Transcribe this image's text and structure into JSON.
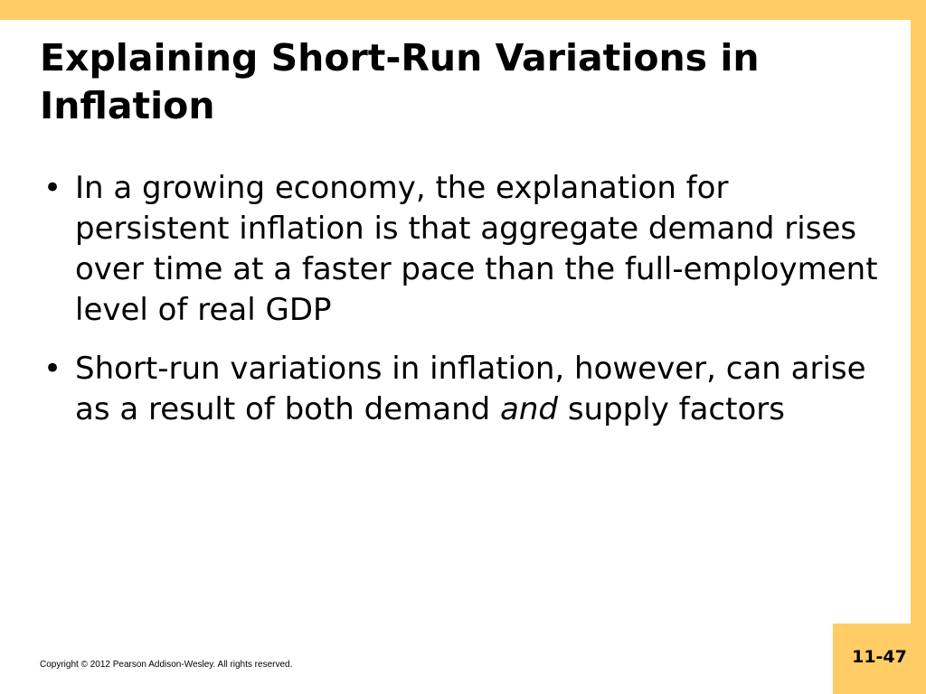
{
  "slide": {
    "title": "Explaining Short-Run Variations in Inflation",
    "bullets": [
      {
        "parts": [
          "In a growing economy, the explanation for persistent inflation is that aggregate demand rises over time at a faster pace than the full-employment level of real GDP"
        ]
      },
      {
        "before": "Short-run variations in inflation, however, can arise as a result of both demand ",
        "emphasis": "and",
        "after": " supply factors"
      }
    ],
    "bullet_glyph": "•",
    "footer": "Copyright © 2012 Pearson Addison-Wesley. All rights reserved.",
    "page_number": "11-47"
  },
  "colors": {
    "accent": "#FFCC66"
  }
}
